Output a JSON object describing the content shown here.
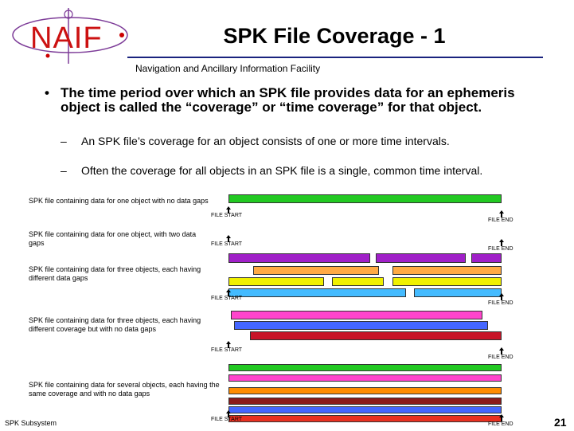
{
  "header": {
    "logo_text": "NAIF",
    "title": "SPK File Coverage - 1",
    "subtitle": "Navigation and Ancillary Information Facility"
  },
  "content": {
    "main_bullet": "The time period over which an SPK file provides data for an ephemeris object is called the “coverage” or “time coverage” for that object.",
    "sub_bullets": [
      "An SPK file’s coverage for an object consists of one or more time intervals.",
      "Often the coverage for all objects in an SPK file is a single, common time interval."
    ]
  },
  "diagram": {
    "start_label": "FILE START",
    "end_label": "FILE END",
    "rows": [
      {
        "caption": "SPK file containing data for one object with no data gaps",
        "bars": [
          {
            "start": 0.0,
            "end": 1.0,
            "color": "#22c922"
          }
        ]
      },
      {
        "caption": "SPK file containing data for one object, with two data gaps",
        "bars": [
          {
            "start": 0.0,
            "end": 0.52,
            "color": "#a020c8"
          },
          {
            "start": 0.54,
            "end": 0.87,
            "color": "#a020c8"
          },
          {
            "start": 0.89,
            "end": 1.0,
            "color": "#a020c8"
          }
        ]
      },
      {
        "caption": "SPK file containing data for three objects, each having different data gaps",
        "bars": [
          {
            "start": 0.09,
            "end": 0.55,
            "color": "#ffaa44"
          },
          {
            "start": 0.6,
            "end": 1.0,
            "color": "#ffaa44"
          },
          {
            "start": 0.0,
            "end": 0.35,
            "color": "#f0f000"
          },
          {
            "start": 0.38,
            "end": 0.57,
            "color": "#f0f000"
          },
          {
            "start": 0.6,
            "end": 1.0,
            "color": "#f0f000"
          },
          {
            "start": 0.0,
            "end": 0.65,
            "color": "#44bbff"
          },
          {
            "start": 0.68,
            "end": 1.0,
            "color": "#44bbff"
          }
        ]
      },
      {
        "caption": "SPK file containing data for three objects, each having different coverage but with no data gaps",
        "bars": [
          {
            "start": 0.01,
            "end": 0.93,
            "color": "#ff44cc"
          },
          {
            "start": 0.02,
            "end": 0.95,
            "color": "#4466ff"
          },
          {
            "start": 0.08,
            "end": 1.0,
            "color": "#c81428"
          }
        ]
      },
      {
        "caption": "SPK file containing data for several objects, each having the same coverage and with no data gaps",
        "bars": [
          {
            "start": 0.0,
            "end": 1.0,
            "color": "#22c922"
          },
          {
            "start": 0.0,
            "end": 1.0,
            "color": "#ff44cc"
          },
          {
            "start": 0.0,
            "end": 1.0,
            "color": "#ff8c00"
          },
          {
            "start": 0.0,
            "end": 1.0,
            "color": "#8b1a1a"
          },
          {
            "start": 0.0,
            "end": 1.0,
            "color": "#4466ff"
          },
          {
            "start": 0.0,
            "end": 1.0,
            "color": "#e83020"
          }
        ]
      }
    ]
  },
  "footer": {
    "left": "SPK Subsystem",
    "page": "21"
  }
}
